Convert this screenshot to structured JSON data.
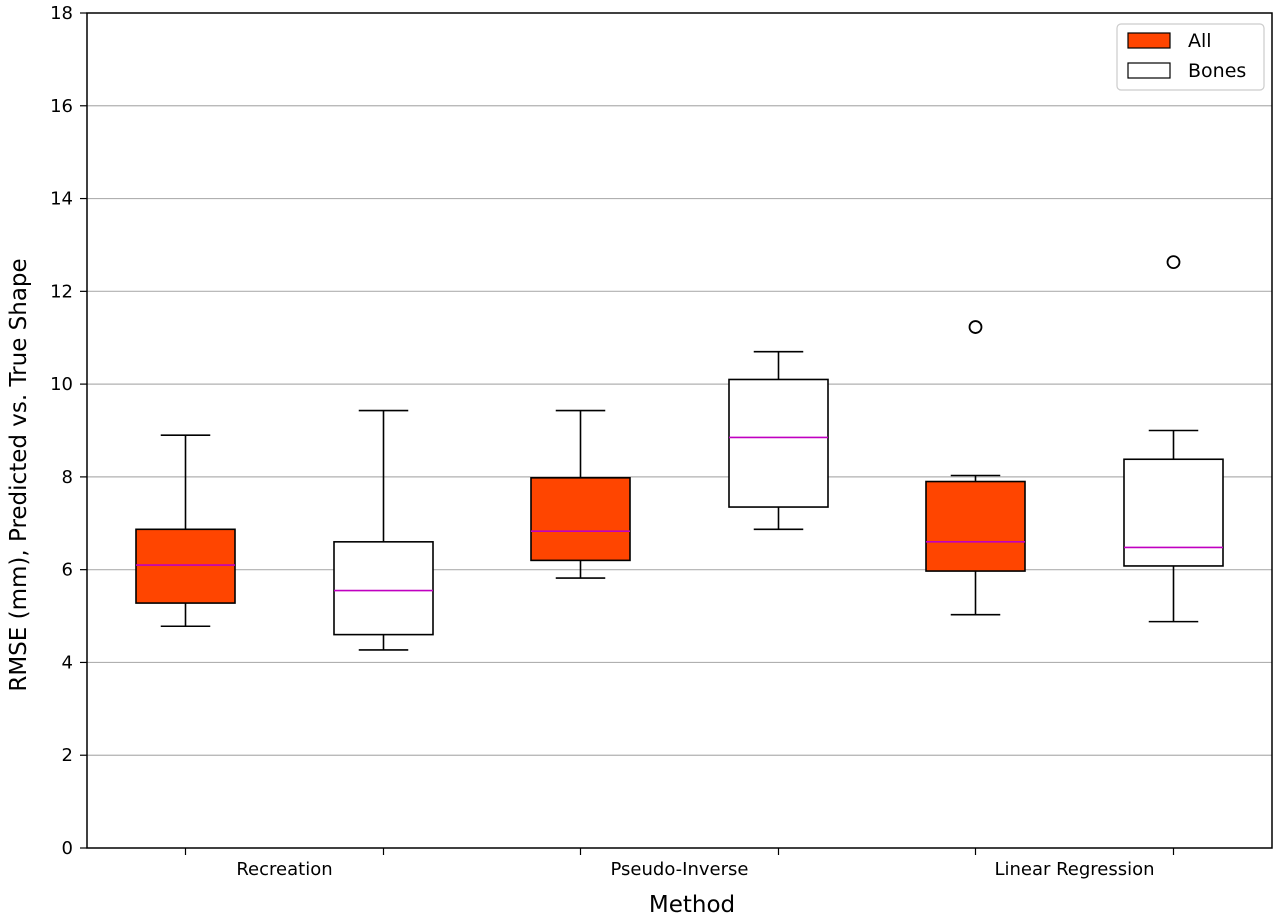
{
  "chart_data": {
    "type": "box",
    "title": "",
    "xlabel": "Method",
    "ylabel": "RMSE (mm), Predicted vs. True Shape",
    "ylim": [
      0,
      18
    ],
    "yticks": [
      0,
      2,
      4,
      6,
      8,
      10,
      12,
      14,
      16,
      18
    ],
    "categories": [
      "Recreation",
      "Pseudo-Inverse",
      "Linear Regression"
    ],
    "grid": "horizontal",
    "legend_position": "top-right",
    "median_color": "#c000c0",
    "series": [
      {
        "name": "All",
        "color": "#ff4500",
        "boxes": [
          {
            "whisker_low": 4.78,
            "q1": 5.28,
            "median": 6.1,
            "q3": 6.87,
            "whisker_high": 8.9,
            "outliers": []
          },
          {
            "whisker_low": 5.82,
            "q1": 6.2,
            "median": 6.83,
            "q3": 7.98,
            "whisker_high": 9.43,
            "outliers": []
          },
          {
            "whisker_low": 5.03,
            "q1": 5.97,
            "median": 6.6,
            "q3": 7.9,
            "whisker_high": 8.03,
            "outliers": [
              11.23
            ]
          }
        ]
      },
      {
        "name": "Bones",
        "color": "#ffffff",
        "boxes": [
          {
            "whisker_low": 4.27,
            "q1": 4.6,
            "median": 5.55,
            "q3": 6.6,
            "whisker_high": 9.43,
            "outliers": []
          },
          {
            "whisker_low": 6.87,
            "q1": 7.35,
            "median": 8.85,
            "q3": 10.1,
            "whisker_high": 10.7,
            "outliers": []
          },
          {
            "whisker_low": 4.88,
            "q1": 6.08,
            "median": 6.48,
            "q3": 8.38,
            "whisker_high": 9.0,
            "outliers": [
              12.63
            ]
          }
        ]
      }
    ]
  }
}
